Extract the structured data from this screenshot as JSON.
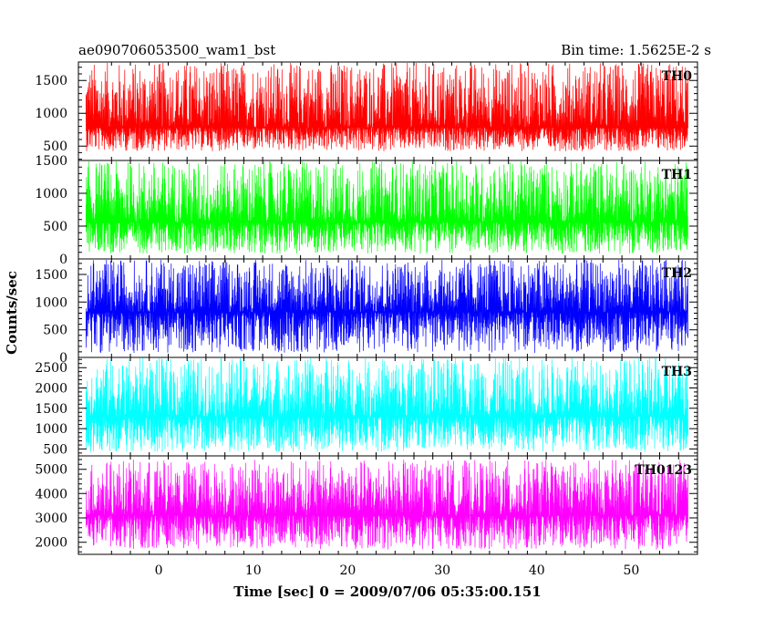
{
  "header": {
    "title": "ae090706053500_wam1_bst",
    "bin_time": "Bin time: 1.5625E-2 s"
  },
  "chart_data": {
    "type": "line",
    "title": "ae090706053500_wam1_bst",
    "xlabel": "Time [sec] 0 = 2009/07/06 05:35:00.151",
    "ylabel": "Counts/sec",
    "xlim": [
      -8.5,
      57
    ],
    "x_ticks": [
      0,
      10,
      20,
      30,
      40,
      50
    ],
    "x_range_data": [
      -7.7,
      56
    ],
    "grid": false,
    "panels": [
      {
        "name": "TH0",
        "color": "#ff0000",
        "ylim": [
          280,
          1780
        ],
        "y_ticks": [
          500,
          1000,
          1500
        ],
        "mean": 780,
        "low": 420,
        "high": 1780
      },
      {
        "name": "TH1",
        "color": "#00ff00",
        "ylim": [
          0,
          1500
        ],
        "y_ticks": [
          0,
          500,
          1000,
          1500
        ],
        "mean": 560,
        "low": 80,
        "high": 1500
      },
      {
        "name": "TH2",
        "color": "#0000ff",
        "ylim": [
          0,
          1780
        ],
        "y_ticks": [
          0,
          500,
          1000,
          1500
        ],
        "mean": 820,
        "low": 80,
        "high": 1780
      },
      {
        "name": "TH3",
        "color": "#00ffff",
        "ylim": [
          330,
          2750
        ],
        "y_ticks": [
          500,
          1000,
          1500,
          2000,
          2500
        ],
        "mean": 1300,
        "low": 420,
        "high": 2750
      },
      {
        "name": "TH0123",
        "color": "#ff00ff",
        "ylim": [
          1500,
          5550
        ],
        "y_ticks": [
          2000,
          3000,
          4000,
          5000
        ],
        "mean": 3100,
        "low": 1700,
        "high": 5400
      }
    ]
  }
}
